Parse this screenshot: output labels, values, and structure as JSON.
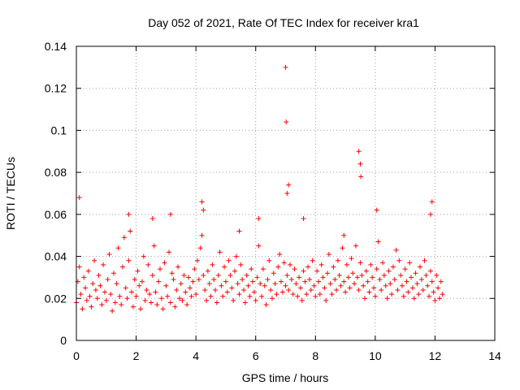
{
  "chart_data": {
    "type": "scatter",
    "title": "Day 052 of 2021, Rate Of TEC Index for receiver kra1",
    "xlabel": "GPS time / hours",
    "ylabel": "ROTI / TECUs",
    "xlim": [
      0,
      14
    ],
    "ylim": [
      0,
      0.14
    ],
    "x_ticks": [
      "0",
      "2",
      "4",
      "6",
      "8",
      "10",
      "12",
      "14"
    ],
    "y_ticks": [
      "0",
      "0.02",
      "0.04",
      "0.06",
      "0.08",
      "0.1",
      "0.12",
      "0.14"
    ],
    "grid": true,
    "marker": "+",
    "color": "#ff0000",
    "series": [
      {
        "name": "kra1",
        "x": [
          0.0,
          0.05,
          0.1,
          0.15,
          0.2,
          0.25,
          0.3,
          0.35,
          0.4,
          0.45,
          0.5,
          0.55,
          0.6,
          0.65,
          0.7,
          0.75,
          0.8,
          0.85,
          0.9,
          0.95,
          1.0,
          1.05,
          1.1,
          1.15,
          1.2,
          1.25,
          1.3,
          1.35,
          1.4,
          1.45,
          1.5,
          1.55,
          1.6,
          1.65,
          1.7,
          1.75,
          1.8,
          1.85,
          1.9,
          1.95,
          2.0,
          2.05,
          2.1,
          2.15,
          2.2,
          2.25,
          2.3,
          2.35,
          2.4,
          2.45,
          2.5,
          2.55,
          2.6,
          2.65,
          2.7,
          2.75,
          2.8,
          2.85,
          2.9,
          2.95,
          3.0,
          3.05,
          3.1,
          3.15,
          3.2,
          3.25,
          3.3,
          3.35,
          3.4,
          3.45,
          3.5,
          3.55,
          3.6,
          3.65,
          3.7,
          3.75,
          3.8,
          3.85,
          3.9,
          3.95,
          4.0,
          4.05,
          4.1,
          4.15,
          4.2,
          4.25,
          4.3,
          4.35,
          4.4,
          4.45,
          4.5,
          4.55,
          4.6,
          4.65,
          4.7,
          4.75,
          4.8,
          4.85,
          4.9,
          4.95,
          5.0,
          5.05,
          5.1,
          5.15,
          5.2,
          5.25,
          5.3,
          5.35,
          5.4,
          5.45,
          5.5,
          5.55,
          5.6,
          5.65,
          5.7,
          5.75,
          5.8,
          5.85,
          5.9,
          5.95,
          6.0,
          6.05,
          6.1,
          6.15,
          6.2,
          6.25,
          6.3,
          6.35,
          6.4,
          6.45,
          6.5,
          6.55,
          6.6,
          6.65,
          6.7,
          6.75,
          6.8,
          6.85,
          6.9,
          6.95,
          7.0,
          7.05,
          7.1,
          7.15,
          7.2,
          7.25,
          7.3,
          7.35,
          7.4,
          7.45,
          7.5,
          7.55,
          7.6,
          7.65,
          7.7,
          7.75,
          7.8,
          7.85,
          7.9,
          7.95,
          8.0,
          8.05,
          8.1,
          8.15,
          8.2,
          8.25,
          8.3,
          8.35,
          8.4,
          8.45,
          8.5,
          8.55,
          8.6,
          8.65,
          8.7,
          8.75,
          8.8,
          8.85,
          8.9,
          8.95,
          9.0,
          9.05,
          9.1,
          9.15,
          9.2,
          9.25,
          9.3,
          9.35,
          9.4,
          9.45,
          9.5,
          9.55,
          9.6,
          9.65,
          9.7,
          9.75,
          9.8,
          9.85,
          9.9,
          9.95,
          10.0,
          10.05,
          10.1,
          10.15,
          10.2,
          10.25,
          10.3,
          10.35,
          10.4,
          10.45,
          10.5,
          10.55,
          10.6,
          10.65,
          10.7,
          10.75,
          10.8,
          10.85,
          10.9,
          10.95,
          11.0,
          11.05,
          11.1,
          11.15,
          11.2,
          11.25,
          11.3,
          11.35,
          11.4,
          11.45,
          11.5,
          11.55,
          11.6,
          11.65,
          11.7,
          11.75,
          11.8,
          11.85,
          11.9,
          11.95,
          12.0,
          12.05,
          12.1,
          12.15,
          12.2,
          12.25,
          0.1,
          1.75,
          3.15,
          4.2,
          4.25,
          6.1,
          7.0,
          7.02,
          7.05,
          7.1,
          9.45,
          9.5,
          9.52,
          10.05,
          11.85,
          11.9,
          7.6,
          8.95,
          2.55,
          5.45
        ],
        "y": [
          0.018,
          0.028,
          0.035,
          0.022,
          0.015,
          0.03,
          0.025,
          0.019,
          0.033,
          0.021,
          0.016,
          0.027,
          0.038,
          0.024,
          0.02,
          0.031,
          0.026,
          0.017,
          0.036,
          0.023,
          0.019,
          0.029,
          0.041,
          0.022,
          0.014,
          0.032,
          0.018,
          0.027,
          0.044,
          0.021,
          0.017,
          0.035,
          0.049,
          0.025,
          0.02,
          0.038,
          0.052,
          0.023,
          0.016,
          0.029,
          0.021,
          0.033,
          0.026,
          0.015,
          0.028,
          0.04,
          0.019,
          0.024,
          0.036,
          0.022,
          0.018,
          0.031,
          0.045,
          0.023,
          0.017,
          0.028,
          0.034,
          0.02,
          0.015,
          0.037,
          0.026,
          0.021,
          0.042,
          0.018,
          0.032,
          0.029,
          0.016,
          0.024,
          0.035,
          0.02,
          0.027,
          0.019,
          0.031,
          0.023,
          0.017,
          0.03,
          0.025,
          0.021,
          0.028,
          0.034,
          0.022,
          0.038,
          0.029,
          0.044,
          0.05,
          0.031,
          0.024,
          0.019,
          0.033,
          0.027,
          0.021,
          0.036,
          0.029,
          0.024,
          0.018,
          0.031,
          0.042,
          0.026,
          0.021,
          0.035,
          0.028,
          0.023,
          0.038,
          0.031,
          0.025,
          0.019,
          0.033,
          0.04,
          0.027,
          0.022,
          0.036,
          0.029,
          0.024,
          0.018,
          0.031,
          0.026,
          0.021,
          0.034,
          0.028,
          0.023,
          0.019,
          0.03,
          0.045,
          0.027,
          0.021,
          0.034,
          0.026,
          0.017,
          0.029,
          0.038,
          0.024,
          0.02,
          0.032,
          0.027,
          0.022,
          0.035,
          0.041,
          0.028,
          0.023,
          0.037,
          0.026,
          0.031,
          0.024,
          0.036,
          0.029,
          0.022,
          0.034,
          0.027,
          0.021,
          0.03,
          0.025,
          0.019,
          0.033,
          0.028,
          0.022,
          0.035,
          0.029,
          0.024,
          0.038,
          0.026,
          0.021,
          0.033,
          0.028,
          0.022,
          0.036,
          0.03,
          0.025,
          0.019,
          0.032,
          0.041,
          0.027,
          0.022,
          0.035,
          0.029,
          0.024,
          0.038,
          0.031,
          0.026,
          0.044,
          0.028,
          0.023,
          0.036,
          0.03,
          0.025,
          0.039,
          0.032,
          0.027,
          0.045,
          0.03,
          0.024,
          0.037,
          0.031,
          0.026,
          0.02,
          0.033,
          0.028,
          0.023,
          0.036,
          0.03,
          0.025,
          0.021,
          0.034,
          0.047,
          0.029,
          0.024,
          0.037,
          0.031,
          0.026,
          0.02,
          0.033,
          0.027,
          0.022,
          0.035,
          0.029,
          0.043,
          0.024,
          0.038,
          0.031,
          0.026,
          0.021,
          0.034,
          0.028,
          0.023,
          0.037,
          0.03,
          0.025,
          0.02,
          0.032,
          0.027,
          0.022,
          0.035,
          0.029,
          0.024,
          0.038,
          0.031,
          0.026,
          0.021,
          0.033,
          0.028,
          0.023,
          0.019,
          0.031,
          0.025,
          0.02,
          0.028,
          0.022,
          0.068,
          0.06,
          0.06,
          0.066,
          0.062,
          0.058,
          0.13,
          0.104,
          0.07,
          0.074,
          0.09,
          0.084,
          0.078,
          0.062,
          0.06,
          0.066,
          0.058,
          0.05,
          0.058,
          0.052
        ]
      }
    ]
  }
}
